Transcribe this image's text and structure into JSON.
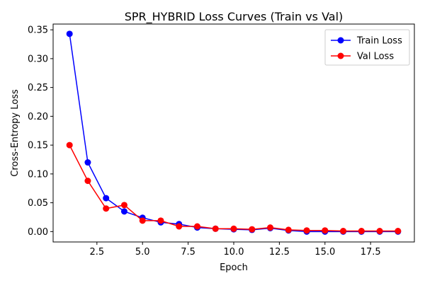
{
  "chart_data": {
    "type": "line",
    "title": "SPR_HYBRID Loss Curves (Train vs Val)",
    "xlabel": "Epoch",
    "ylabel": "Cross-Entropy Loss",
    "xlim": [
      0.1,
      19.9
    ],
    "ylim": [
      -0.018,
      0.36
    ],
    "xticks": [
      2.5,
      5.0,
      7.5,
      10.0,
      12.5,
      15.0,
      17.5
    ],
    "xtick_labels": [
      "2.5",
      "5.0",
      "7.5",
      "10.0",
      "12.5",
      "15.0",
      "17.5"
    ],
    "yticks": [
      0.0,
      0.05,
      0.1,
      0.15,
      0.2,
      0.25,
      0.3,
      0.35
    ],
    "ytick_labels": [
      "0.00",
      "0.05",
      "0.10",
      "0.15",
      "0.20",
      "0.25",
      "0.30",
      "0.35"
    ],
    "grid": false,
    "legend_position": "top-right",
    "series": [
      {
        "name": "Train Loss",
        "color": "#0000ff",
        "x": [
          1,
          2,
          3,
          4,
          5,
          6,
          7,
          8,
          9,
          10,
          11,
          12,
          13,
          14,
          15,
          16,
          17,
          18,
          19
        ],
        "values": [
          0.343,
          0.12,
          0.058,
          0.035,
          0.024,
          0.016,
          0.013,
          0.007,
          0.005,
          0.004,
          0.003,
          0.006,
          0.002,
          0.0,
          0.0,
          0.0,
          0.0,
          0.0,
          0.0
        ]
      },
      {
        "name": "Val Loss",
        "color": "#ff0000",
        "x": [
          1,
          2,
          3,
          4,
          5,
          6,
          7,
          8,
          9,
          10,
          11,
          12,
          13,
          14,
          15,
          16,
          17,
          18,
          19
        ],
        "values": [
          0.15,
          0.088,
          0.04,
          0.046,
          0.019,
          0.019,
          0.009,
          0.009,
          0.005,
          0.005,
          0.004,
          0.007,
          0.003,
          0.002,
          0.002,
          0.001,
          0.001,
          0.001,
          0.001
        ]
      }
    ]
  }
}
